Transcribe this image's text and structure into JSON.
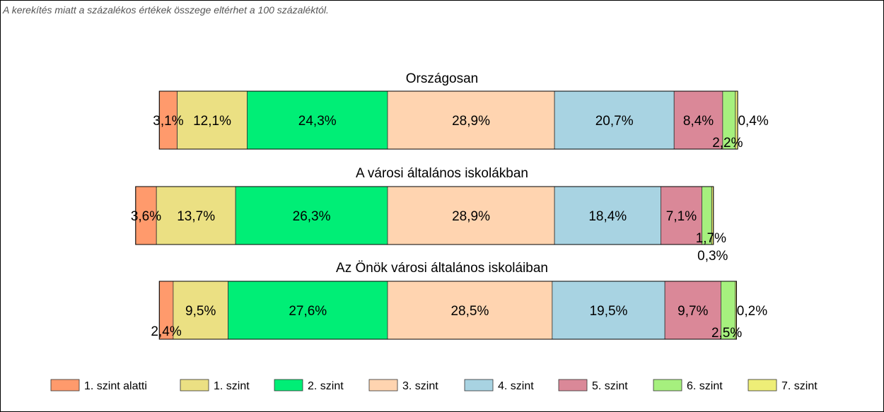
{
  "note": "A kerekítés miatt a  százalékos értékek összege eltérhet a 100 százaléktól.",
  "chart_data": {
    "type": "bar",
    "stacked": true,
    "orientation": "horizontal",
    "unit": "%",
    "levels": [
      "1. szint alatti",
      "1. szint",
      "2. szint",
      "3. szint",
      "4. szint",
      "5. szint",
      "6. szint",
      "7. szint"
    ],
    "colors": [
      "#FF9A6C",
      "#EBE083",
      "#00EE76",
      "#FFD4B0",
      "#A8D3E2",
      "#DA8898",
      "#A6F07E",
      "#EEEE77"
    ],
    "legend_position": "bottom",
    "groups": [
      {
        "title": "Országosan",
        "values": [
          3.1,
          12.1,
          24.3,
          28.9,
          20.7,
          8.4,
          2.2,
          0.4
        ],
        "labels": [
          "3,1%",
          "12,1%",
          "24,3%",
          "28,9%",
          "20,7%",
          "8,4%",
          "2,2%",
          "0,4%"
        ]
      },
      {
        "title": "A városi általános iskolákban",
        "values": [
          3.6,
          13.7,
          26.3,
          28.9,
          18.4,
          7.1,
          1.7,
          0.3
        ],
        "labels": [
          "3,6%",
          "13,7%",
          "26,3%",
          "28,9%",
          "18,4%",
          "7,1%",
          "1,7%",
          "0,3%"
        ]
      },
      {
        "title": "Az Önök városi általános iskoláiban",
        "values": [
          2.4,
          9.5,
          27.6,
          28.5,
          19.5,
          9.7,
          2.5,
          0.2
        ],
        "labels": [
          "2,4%",
          "9,5%",
          "27,6%",
          "28,5%",
          "19,5%",
          "9,7%",
          "2,5%",
          "0,2%"
        ]
      }
    ]
  }
}
